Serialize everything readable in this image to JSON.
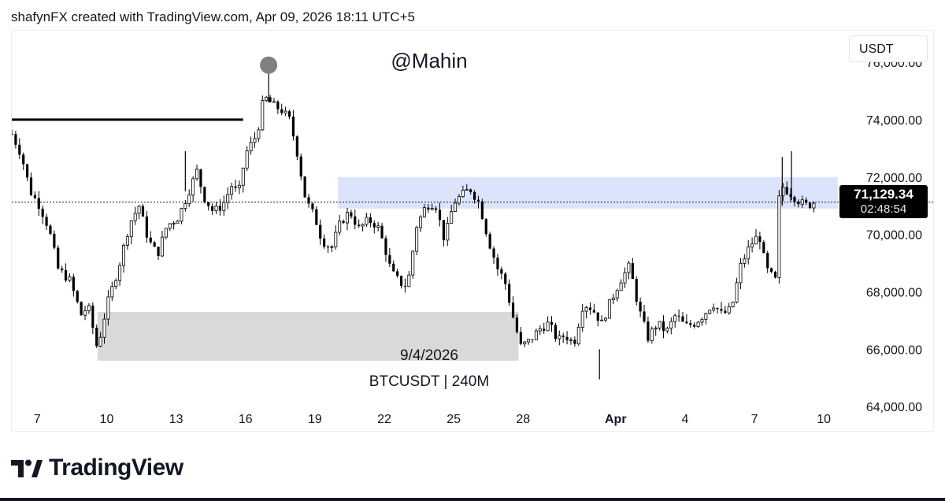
{
  "header": {
    "caption": "shafynFX created with TradingView.com, Apr 09, 2026 18:11 UTC+5"
  },
  "brand": {
    "name": "TradingView"
  },
  "currency": "USDT",
  "last_price": {
    "price": "71,129.34",
    "countdown": "02:48:54"
  },
  "colors": {
    "zone_upper": "#dce4fb",
    "zone_lower": "#d9d9d9",
    "candle": "#000000",
    "marker": "#808080"
  },
  "chart_data": {
    "type": "candlestick",
    "symbol_label": "BTCUSDT | 240M",
    "watermark": "@Mahin",
    "date_label": "9/4/2026",
    "y_ticks": [
      64000,
      66000,
      68000,
      70000,
      72000,
      74000,
      76000
    ],
    "y_tick_labels": [
      "64,000.00",
      "66,000.00",
      "68,000.00",
      "70,000.00",
      "72,000.00",
      "74,000.00",
      "76,000.00"
    ],
    "ylim": [
      63100,
      77100
    ],
    "x_ticks": [
      {
        "label": "7",
        "day": 7
      },
      {
        "label": "10",
        "day": 10
      },
      {
        "label": "13",
        "day": 13
      },
      {
        "label": "16",
        "day": 16
      },
      {
        "label": "19",
        "day": 19
      },
      {
        "label": "22",
        "day": 22
      },
      {
        "label": "25",
        "day": 25
      },
      {
        "label": "28",
        "day": 28
      },
      {
        "label": "Apr",
        "day": 32
      },
      {
        "label": "4",
        "day": 35
      },
      {
        "label": "7",
        "day": 38
      },
      {
        "label": "10",
        "day": 41
      }
    ],
    "x_axis_note": "day = days since Mar 1, 2026",
    "xlim": [
      5.9,
      41.3
    ],
    "last_price_line": 71129.34,
    "resistance_line": {
      "y": 74000,
      "day_start": 5.9,
      "day_end": 15.9
    },
    "zones": [
      {
        "name": "upper",
        "y_low": 70900,
        "y_high": 72000,
        "day_start": 20.0,
        "day_end": 41.6
      },
      {
        "name": "lower",
        "y_low": 65600,
        "y_high": 67300,
        "day_start": 9.6,
        "day_end": 27.8
      }
    ],
    "marker": {
      "day": 17.0,
      "y": 75900
    },
    "path_points": [
      [
        5.9,
        73500
      ],
      [
        6.3,
        72800
      ],
      [
        6.7,
        71500
      ],
      [
        7.1,
        71000
      ],
      [
        7.5,
        70200
      ],
      [
        7.9,
        68800
      ],
      [
        8.4,
        68400
      ],
      [
        8.9,
        67200
      ],
      [
        9.2,
        67500
      ],
      [
        9.6,
        66000
      ],
      [
        10.0,
        67500
      ],
      [
        10.5,
        68800
      ],
      [
        11.0,
        70400
      ],
      [
        11.4,
        71000
      ],
      [
        11.8,
        69800
      ],
      [
        12.2,
        69300
      ],
      [
        12.6,
        70300
      ],
      [
        13.1,
        70600
      ],
      [
        13.6,
        71600
      ],
      [
        13.9,
        72200
      ],
      [
        14.2,
        71300
      ],
      [
        14.6,
        70800
      ],
      [
        15.0,
        71000
      ],
      [
        15.4,
        71700
      ],
      [
        15.7,
        71400
      ],
      [
        16.0,
        72800
      ],
      [
        16.5,
        73500
      ],
      [
        16.8,
        74800
      ],
      [
        17.2,
        74500
      ],
      [
        17.6,
        74300
      ],
      [
        17.9,
        74000
      ],
      [
        18.2,
        73000
      ],
      [
        18.6,
        71200
      ],
      [
        19.0,
        70600
      ],
      [
        19.3,
        69800
      ],
      [
        19.7,
        69500
      ],
      [
        20.1,
        70400
      ],
      [
        20.5,
        70800
      ],
      [
        20.9,
        70200
      ],
      [
        21.3,
        70500
      ],
      [
        21.7,
        70300
      ],
      [
        22.0,
        69600
      ],
      [
        22.3,
        68700
      ],
      [
        22.7,
        68300
      ],
      [
        23.0,
        68200
      ],
      [
        23.4,
        70300
      ],
      [
        23.8,
        71000
      ],
      [
        24.2,
        71100
      ],
      [
        24.6,
        69800
      ],
      [
        25.0,
        71100
      ],
      [
        25.4,
        71400
      ],
      [
        25.7,
        71600
      ],
      [
        26.1,
        71100
      ],
      [
        26.5,
        69800
      ],
      [
        26.9,
        68800
      ],
      [
        27.2,
        68400
      ],
      [
        27.6,
        67000
      ],
      [
        27.9,
        66100
      ],
      [
        28.3,
        66300
      ],
      [
        28.7,
        66700
      ],
      [
        29.1,
        66900
      ],
      [
        29.5,
        66300
      ],
      [
        29.8,
        66500
      ],
      [
        30.2,
        66200
      ],
      [
        30.6,
        67600
      ],
      [
        31.0,
        67400
      ],
      [
        31.4,
        66900
      ],
      [
        31.8,
        67700
      ],
      [
        32.2,
        68400
      ],
      [
        32.6,
        68900
      ],
      [
        33.0,
        67400
      ],
      [
        33.4,
        66400
      ],
      [
        33.8,
        66900
      ],
      [
        34.2,
        66600
      ],
      [
        34.6,
        67200
      ],
      [
        35.0,
        66800
      ],
      [
        35.4,
        66900
      ],
      [
        35.8,
        67200
      ],
      [
        36.2,
        67600
      ],
      [
        36.6,
        67200
      ],
      [
        37.0,
        67400
      ],
      [
        37.4,
        68900
      ],
      [
        37.8,
        69600
      ],
      [
        38.2,
        70000
      ],
      [
        38.5,
        68800
      ],
      [
        38.9,
        68400
      ],
      [
        39.1,
        71800
      ],
      [
        39.3,
        71600
      ],
      [
        39.6,
        71400
      ],
      [
        40.0,
        71100
      ],
      [
        40.3,
        71000
      ],
      [
        40.6,
        71129
      ]
    ]
  }
}
